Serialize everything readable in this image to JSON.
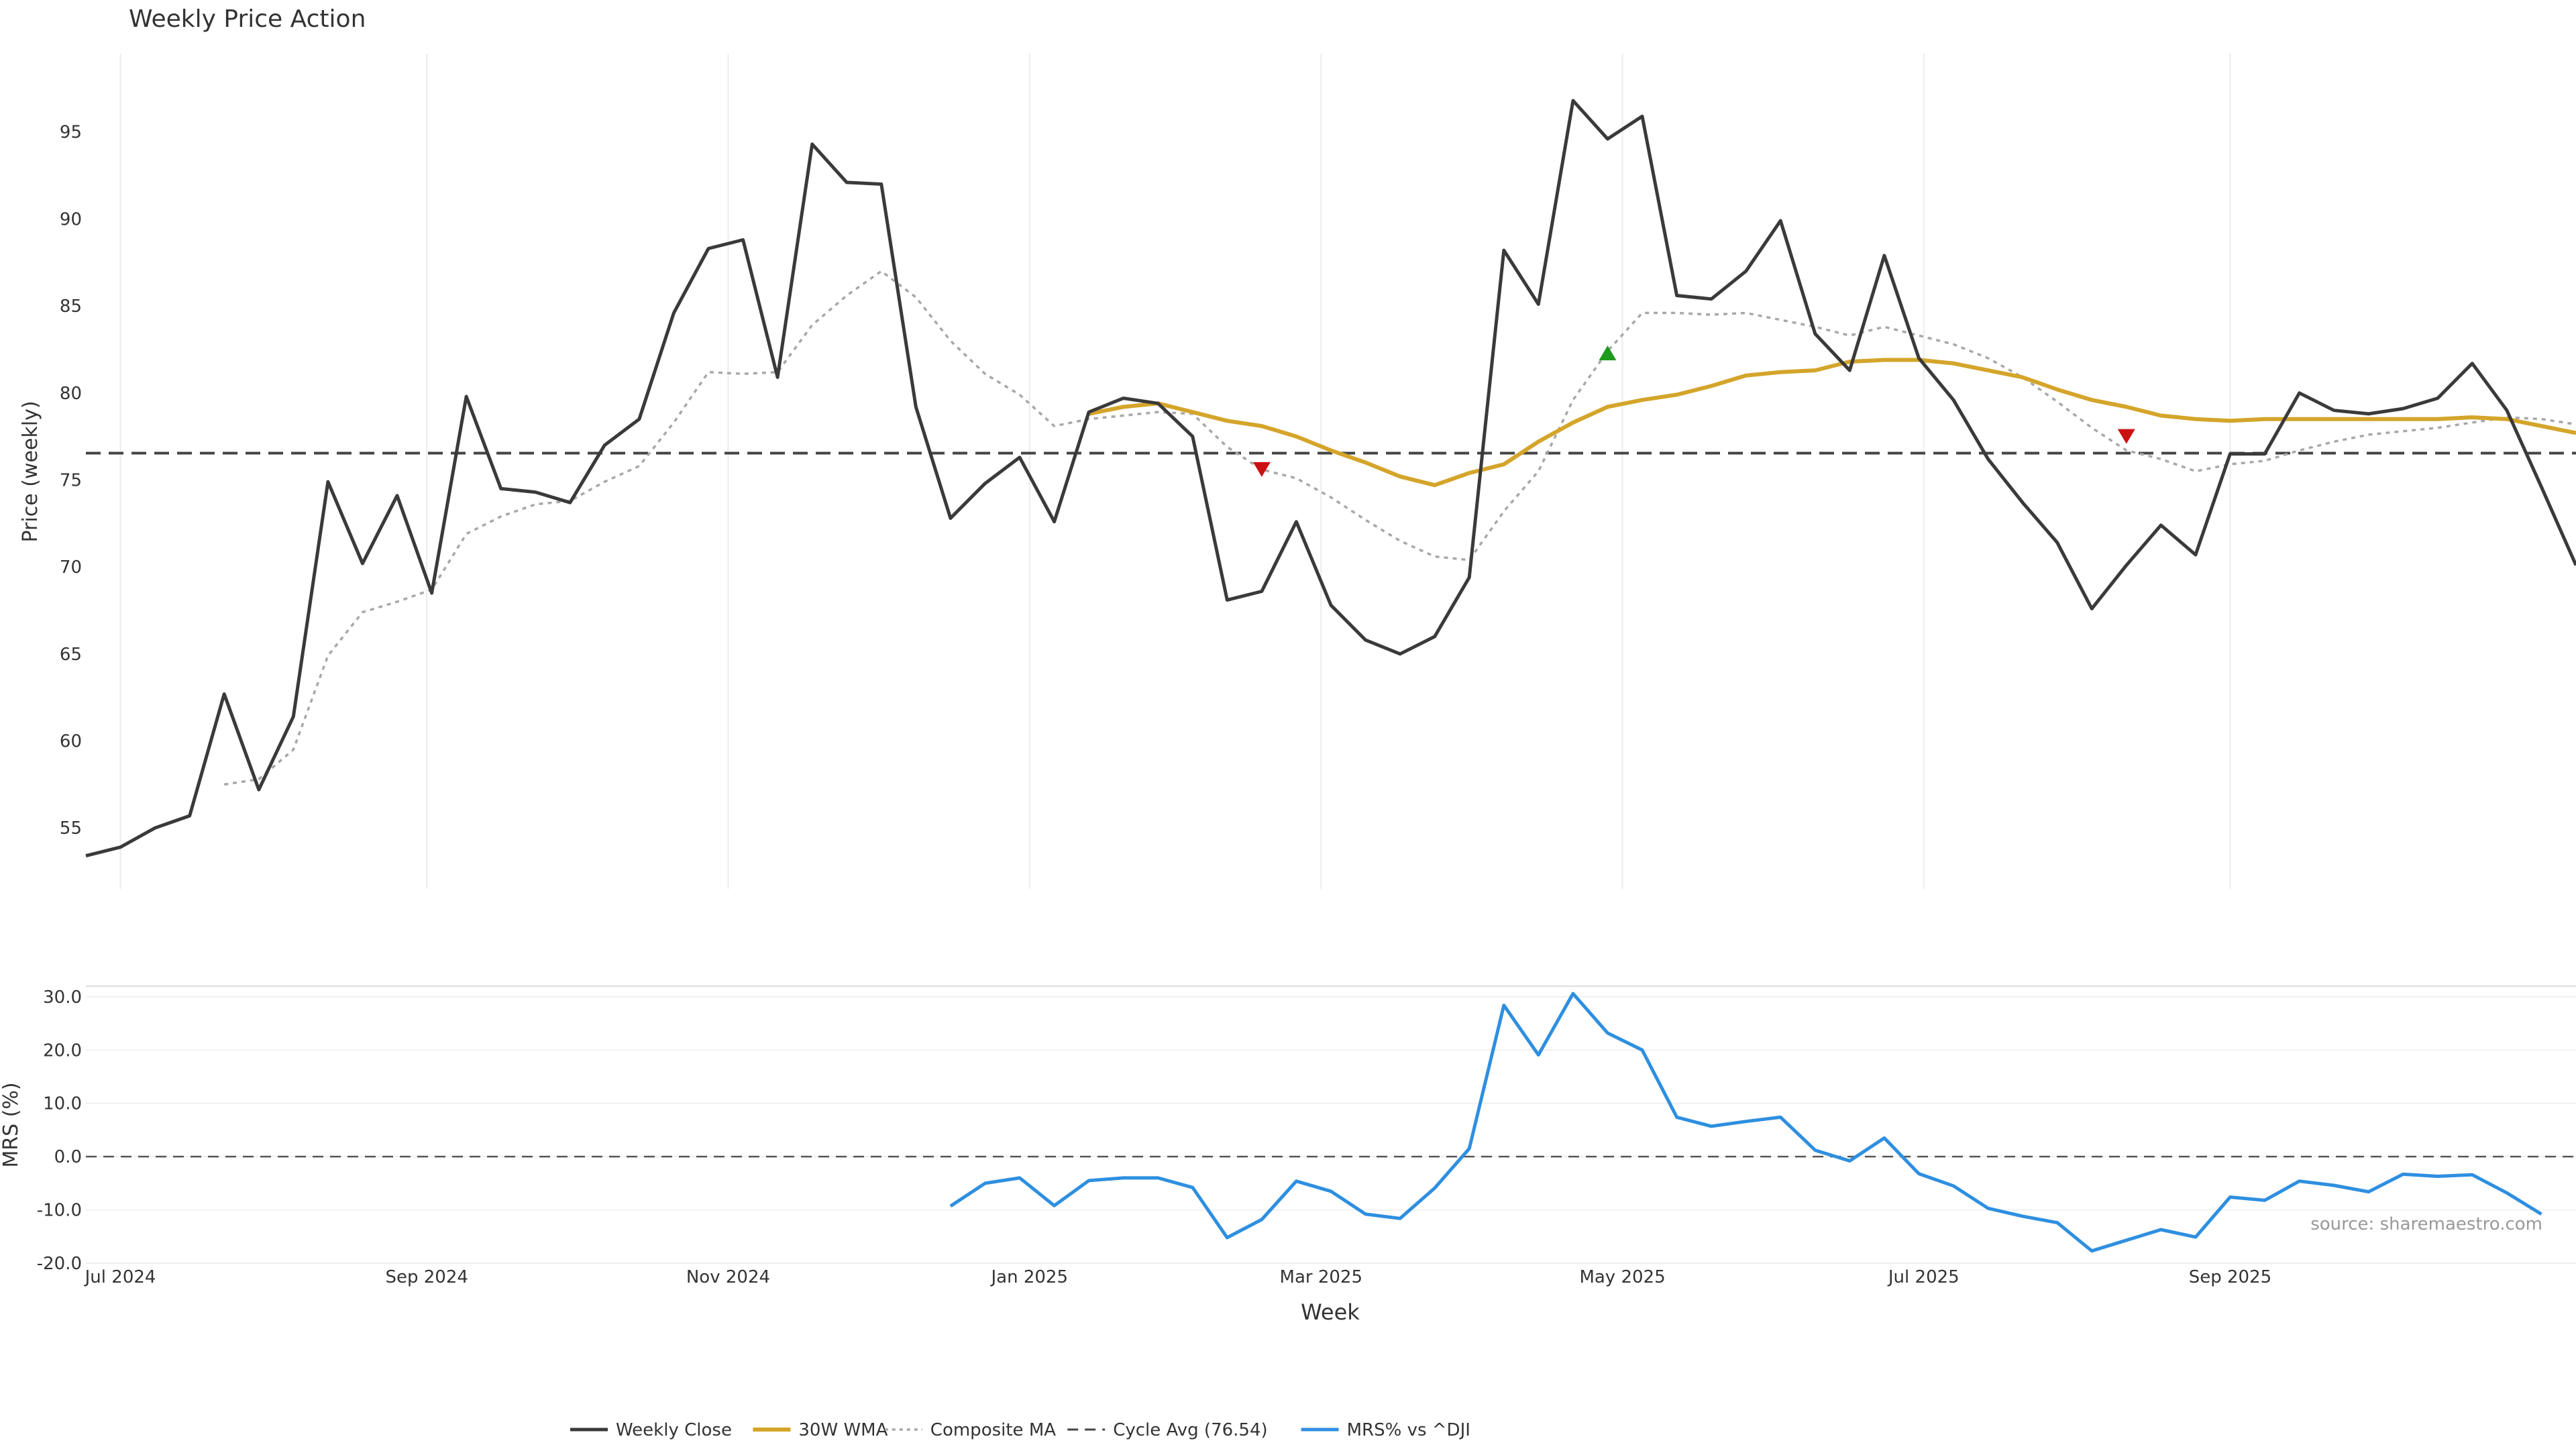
{
  "chart_data": [
    {
      "type": "line",
      "title": "Weekly Price Action",
      "xlabel": "",
      "ylabel": "Price (weekly)",
      "ylim": [
        51.5,
        99.5
      ],
      "yticks": [
        55,
        60,
        65,
        70,
        75,
        80,
        85,
        90,
        95
      ],
      "xticks": [
        {
          "date": "2024-07-01",
          "label": "Jul 2024"
        },
        {
          "date": "2024-09-01",
          "label": "Sep 2024"
        },
        {
          "date": "2024-11-01",
          "label": "Nov 2024"
        },
        {
          "date": "2025-01-01",
          "label": "Jan 2025"
        },
        {
          "date": "2025-03-01",
          "label": "Mar 2025"
        },
        {
          "date": "2025-05-01",
          "label": "May 2025"
        },
        {
          "date": "2025-07-01",
          "label": "Jul 2025"
        },
        {
          "date": "2025-09-01",
          "label": "Sep 2025"
        }
      ],
      "grid": "vertical",
      "reference_line": {
        "name": "Cycle Avg (76.54)",
        "value": 76.54,
        "style": "dashed",
        "color": "#444444"
      },
      "x": [
        "2024-06-24",
        "2024-07-01",
        "2024-07-08",
        "2024-07-15",
        "2024-07-22",
        "2024-07-29",
        "2024-08-05",
        "2024-08-12",
        "2024-08-19",
        "2024-08-26",
        "2024-09-02",
        "2024-09-09",
        "2024-09-16",
        "2024-09-23",
        "2024-09-30",
        "2024-10-07",
        "2024-10-14",
        "2024-10-21",
        "2024-10-28",
        "2024-11-04",
        "2024-11-11",
        "2024-11-18",
        "2024-11-25",
        "2024-12-02",
        "2024-12-09",
        "2024-12-16",
        "2024-12-23",
        "2024-12-30",
        "2025-01-06",
        "2025-01-13",
        "2025-01-20",
        "2025-01-27",
        "2025-02-03",
        "2025-02-10",
        "2025-02-17",
        "2025-02-24",
        "2025-03-03",
        "2025-03-10",
        "2025-03-17",
        "2025-03-24",
        "2025-03-31",
        "2025-04-07",
        "2025-04-14",
        "2025-04-21",
        "2025-04-28",
        "2025-05-05",
        "2025-05-12",
        "2025-05-19",
        "2025-05-26",
        "2025-06-02",
        "2025-06-09",
        "2025-06-16",
        "2025-06-23",
        "2025-06-30",
        "2025-07-07",
        "2025-07-14",
        "2025-07-21",
        "2025-07-28",
        "2025-08-04",
        "2025-08-11",
        "2025-08-18",
        "2025-08-25",
        "2025-09-01",
        "2025-09-08",
        "2025-09-15",
        "2025-09-22",
        "2025-09-29",
        "2025-10-06",
        "2025-10-13",
        "2025-10-20",
        "2025-10-27",
        "2025-11-03",
        "2025-11-10"
      ],
      "series": [
        {
          "name": "Weekly Close",
          "color": "#3a3a3a",
          "style": "solid",
          "values": [
            53.4,
            53.9,
            55.0,
            55.7,
            62.7,
            57.2,
            61.4,
            74.9,
            70.2,
            74.1,
            68.5,
            79.8,
            74.5,
            74.3,
            73.7,
            77.0,
            78.5,
            84.6,
            88.3,
            88.8,
            80.9,
            94.3,
            92.1,
            92.0,
            79.2,
            72.8,
            74.8,
            76.3,
            72.6,
            78.9,
            79.7,
            79.4,
            77.5,
            68.1,
            68.6,
            72.6,
            67.8,
            65.8,
            65.0,
            66.0,
            69.4,
            88.2,
            85.1,
            96.8,
            94.6,
            95.9,
            85.6,
            85.4,
            87.0,
            89.9,
            83.4,
            81.3,
            87.9,
            82.0,
            79.6,
            76.2,
            73.7,
            71.4,
            67.6,
            70.1,
            72.4,
            70.7,
            76.5,
            76.5,
            80.0,
            79.0,
            78.8,
            79.1,
            79.7,
            81.7,
            79.0,
            74.6,
            70.1
          ]
        },
        {
          "name": "30W WMA",
          "color": "#d4a52a",
          "style": "solid",
          "values": [
            null,
            null,
            null,
            null,
            null,
            null,
            null,
            null,
            null,
            null,
            null,
            null,
            null,
            null,
            null,
            null,
            null,
            null,
            null,
            null,
            null,
            null,
            null,
            null,
            null,
            null,
            null,
            null,
            null,
            78.8,
            79.2,
            79.4,
            78.9,
            78.4,
            78.1,
            77.5,
            76.7,
            76.0,
            75.2,
            74.7,
            75.4,
            75.9,
            77.2,
            78.3,
            79.2,
            79.6,
            79.9,
            80.4,
            81.0,
            81.2,
            81.3,
            81.8,
            81.9,
            81.9,
            81.7,
            81.3,
            80.9,
            80.2,
            79.6,
            79.2,
            78.7,
            78.5,
            78.4,
            78.5,
            78.5,
            78.5,
            78.5,
            78.5,
            78.5,
            78.6,
            78.5,
            78.1,
            77.7
          ]
        },
        {
          "name": "Composite MA",
          "color": "#a8a8a8",
          "style": "dotted",
          "values": [
            null,
            null,
            null,
            null,
            57.5,
            57.8,
            59.5,
            64.9,
            67.4,
            68.0,
            68.7,
            71.9,
            72.9,
            73.6,
            73.8,
            74.9,
            75.8,
            78.3,
            81.2,
            81.1,
            81.2,
            83.9,
            85.6,
            87.0,
            85.5,
            83.0,
            81.1,
            79.9,
            78.1,
            78.5,
            78.7,
            78.9,
            78.8,
            76.9,
            75.6,
            75.1,
            74.0,
            72.7,
            71.5,
            70.6,
            70.4,
            73.2,
            75.5,
            79.6,
            82.4,
            84.6,
            84.6,
            84.5,
            84.6,
            84.2,
            83.8,
            83.3,
            83.8,
            83.3,
            82.8,
            82.0,
            80.9,
            79.5,
            78.0,
            76.7,
            76.2,
            75.5,
            75.9,
            76.1,
            76.7,
            77.2,
            77.6,
            77.8,
            78.0,
            78.3,
            78.6,
            78.5,
            78.2
          ]
        }
      ],
      "markers": [
        {
          "date": "2025-02-17",
          "value": 75.6,
          "type": "sell",
          "color": "#cc1111"
        },
        {
          "date": "2025-04-28",
          "value": 82.3,
          "type": "buy",
          "color": "#1e9a1e"
        },
        {
          "date": "2025-08-11",
          "value": 77.5,
          "type": "sell",
          "color": "#cc1111"
        }
      ]
    },
    {
      "type": "line",
      "title": "",
      "xlabel": "Week",
      "ylabel": "MRS (%)",
      "ylim": [
        -20.0,
        32.0
      ],
      "yticks": [
        "30.0",
        "20.0",
        "10.0",
        "0.0",
        "-10.0",
        "-20.0"
      ],
      "grid": "horizontal",
      "reference_line": {
        "value": 0.0,
        "style": "dashed",
        "color": "#555555"
      },
      "annotation": "source: sharemaestro.com",
      "x_start": "2024-12-16",
      "series": [
        {
          "name": "MRS% vs ^DJI",
          "color": "#2e8fe0",
          "style": "solid",
          "values": [
            -9.3,
            -5.0,
            -4.0,
            -9.2,
            -4.5,
            -4.0,
            -4.0,
            -5.8,
            -15.2,
            -11.8,
            -4.6,
            -6.5,
            -10.8,
            -11.6,
            -5.9,
            1.5,
            28.4,
            19.1,
            30.6,
            23.2,
            20.0,
            7.4,
            5.7,
            6.6,
            7.4,
            1.2,
            -0.8,
            3.5,
            -3.2,
            -5.5,
            -9.7,
            -11.2,
            -12.4,
            -17.7,
            -15.7,
            -13.7,
            -15.1,
            -7.6,
            -8.2,
            -4.6,
            -5.4,
            -6.6,
            -3.3,
            -3.7,
            -3.4,
            -6.8,
            -10.8
          ]
        }
      ]
    }
  ]
}
